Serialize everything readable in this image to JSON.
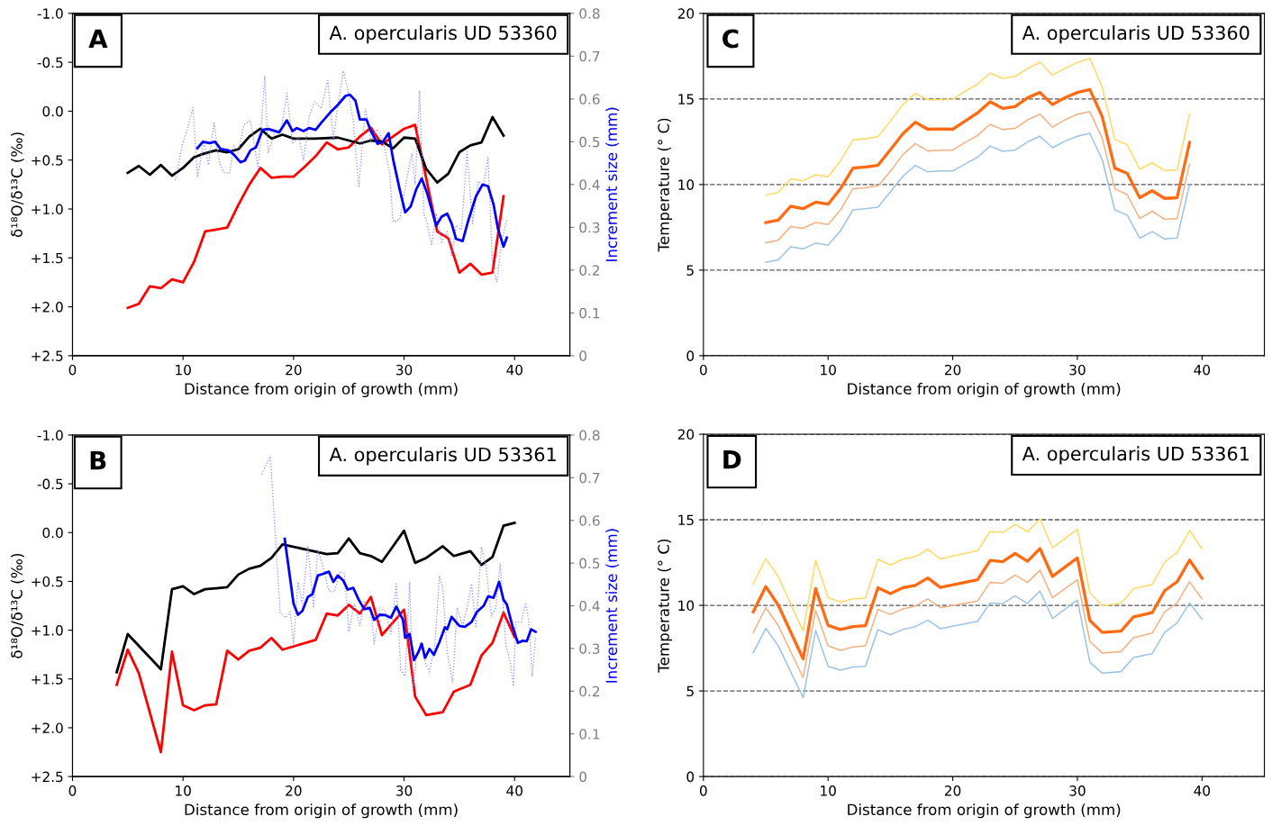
{
  "chart_data": [
    {
      "type": "line",
      "xlabel": "Distance from origin of growth (mm)",
      "ylabel": "δ¹⁸O/δ¹³C (‰)",
      "y2label": "Increment size (mm)",
      "xlim": [
        0,
        45
      ],
      "xticks": [
        0,
        10,
        20,
        30,
        40
      ],
      "ylim": [
        2.5,
        -1.0
      ],
      "yticks": [
        {
          "value": -1.0,
          "label": "-1.0"
        },
        {
          "value": -0.5,
          "label": "-0.5"
        },
        {
          "value": 0.0,
          "label": "0.0"
        },
        {
          "value": 0.5,
          "label": "+0.5"
        },
        {
          "value": 1.0,
          "label": "+1.0"
        },
        {
          "value": 1.5,
          "label": "+1.5"
        },
        {
          "value": 2.0,
          "label": "+2.0"
        },
        {
          "value": 2.5,
          "label": "+2.5"
        }
      ],
      "y2lim": [
        0,
        0.8
      ],
      "y2ticks": [
        0,
        0.1,
        0.2,
        0.3,
        0.4,
        0.5,
        0.6,
        0.7,
        0.8
      ],
      "annotations": [
        "A",
        "A. opercularis UD 53360"
      ],
      "series": [
        {
          "color": "#8c8cff",
          "axis": "y2",
          "line_style": "dotted",
          "x": [
            9.3,
            9.9,
            10.4,
            10.9,
            11.3,
            11.9,
            12.3,
            12.8,
            13.3,
            13.7,
            14.2,
            14.6,
            15.0,
            15.5,
            16.1,
            16.8,
            17.4,
            17.7,
            18.3,
            18.9,
            19.4,
            19.9,
            20.5,
            20.9,
            21.4,
            21.9,
            22.5,
            23.1,
            23.6,
            24.0,
            24.5,
            24.9,
            25.4,
            25.9,
            26.5,
            27.0,
            27.6,
            28.1,
            28.7,
            29.0,
            29.6,
            30.1,
            30.7,
            31.0,
            31.4,
            31.8,
            32.1,
            32.5,
            32.9,
            33.4,
            33.9,
            34.3,
            34.7,
            35.2,
            35.7,
            36.2,
            36.7,
            37.2,
            37.6,
            38.0,
            38.4,
            38.8,
            39.3
          ],
          "values": [
            0.41,
            0.49,
            0.53,
            0.58,
            0.417,
            0.5,
            0.445,
            0.544,
            0.45,
            0.428,
            0.426,
            0.49,
            0.473,
            0.54,
            0.55,
            0.436,
            0.654,
            0.473,
            0.52,
            0.53,
            0.613,
            0.497,
            0.511,
            0.456,
            0.558,
            0.594,
            0.577,
            0.643,
            0.504,
            0.582,
            0.666,
            0.624,
            0.549,
            0.395,
            0.577,
            0.502,
            0.53,
            0.502,
            0.426,
            0.313,
            0.318,
            0.393,
            0.473,
            0.4,
            0.619,
            0.332,
            0.309,
            0.257,
            0.332,
            0.266,
            0.29,
            0.233,
            0.304,
            0.295,
            0.477,
            0.309,
            0.407,
            0.398,
            0.464,
            0.21,
            0.172,
            0.266,
            0.318
          ]
        },
        {
          "color": "#0000ff",
          "axis": "y2",
          "x": [
            11.3,
            11.8,
            12.4,
            12.9,
            13.4,
            14.1,
            14.6,
            15.2,
            15.6,
            16.1,
            16.6,
            17.2,
            17.7,
            18.7,
            19.4,
            19.9,
            20.3,
            20.9,
            21.4,
            22.0,
            22.5,
            23.3,
            24.0,
            24.7,
            25.1,
            25.6,
            26.0,
            26.6,
            27.0,
            27.6,
            28.1,
            28.6,
            29.0,
            29.6,
            30.1,
            30.6,
            31.1,
            31.6,
            32.1,
            32.9,
            33.4,
            33.9,
            34.3,
            34.7,
            35.3,
            35.8,
            36.5,
            37.1,
            37.6,
            38.1,
            38.5,
            39.0,
            39.3
          ],
          "values": [
            0.485,
            0.5,
            0.497,
            0.5,
            0.483,
            0.48,
            0.47,
            0.452,
            0.456,
            0.48,
            0.487,
            0.528,
            0.53,
            0.522,
            0.55,
            0.525,
            0.532,
            0.525,
            0.532,
            0.528,
            0.544,
            0.568,
            0.586,
            0.607,
            0.61,
            0.596,
            0.552,
            0.552,
            0.525,
            0.495,
            0.5,
            0.52,
            0.46,
            0.389,
            0.335,
            0.349,
            0.389,
            0.414,
            0.379,
            0.304,
            0.325,
            0.332,
            0.309,
            0.273,
            0.268,
            0.315,
            0.372,
            0.4,
            0.396,
            0.353,
            0.296,
            0.255,
            0.276
          ]
        },
        {
          "color": "#ff0000",
          "x": [
            5,
            6,
            7,
            8,
            9,
            10,
            11,
            12,
            13,
            14,
            15,
            16,
            17,
            18,
            19,
            20,
            21,
            22,
            23,
            24,
            25,
            26,
            27,
            28,
            29,
            30,
            31,
            33,
            34,
            35,
            36,
            37,
            38,
            39
          ],
          "values": [
            2.01,
            1.97,
            1.79,
            1.81,
            1.72,
            1.75,
            1.54,
            1.23,
            1.21,
            1.19,
            0.96,
            0.75,
            0.58,
            0.68,
            0.67,
            0.67,
            0.57,
            0.46,
            0.32,
            0.39,
            0.37,
            0.26,
            0.17,
            0.34,
            0.26,
            0.18,
            0.14,
            1.23,
            1.3,
            1.65,
            1.56,
            1.67,
            1.65,
            0.87
          ]
        },
        {
          "color": "#000000",
          "x": [
            5,
            6,
            7,
            8,
            9,
            10,
            11,
            12,
            13,
            14,
            15,
            16,
            17,
            18,
            19,
            20,
            22,
            24,
            26,
            27,
            28,
            29,
            30,
            31,
            32,
            33,
            34,
            35,
            36,
            37,
            38,
            39
          ],
          "values": [
            0.63,
            0.56,
            0.65,
            0.55,
            0.66,
            0.58,
            0.47,
            0.43,
            0.4,
            0.42,
            0.39,
            0.26,
            0.18,
            0.28,
            0.24,
            0.28,
            0.28,
            0.27,
            0.33,
            0.3,
            0.31,
            0.38,
            0.27,
            0.28,
            0.59,
            0.73,
            0.64,
            0.42,
            0.35,
            0.32,
            0.06,
            0.25
          ]
        }
      ]
    },
    {
      "type": "line",
      "xlabel": "Distance from origin of growth (mm)",
      "ylabel": "Temperature (° C)",
      "xlim": [
        0,
        45
      ],
      "xticks": [
        0,
        10,
        20,
        30,
        40
      ],
      "ylim": [
        0,
        20
      ],
      "yticks": [
        0,
        5,
        10,
        15,
        20
      ],
      "grid": "y",
      "annotations": [
        "C",
        "A. opercularis UD 53360"
      ],
      "series": [
        {
          "color": "#ff6a13",
          "x": [
            5,
            6,
            7,
            8,
            9,
            10,
            11,
            12,
            13,
            14,
            15,
            16,
            17,
            18,
            19,
            20,
            21,
            22,
            23,
            24,
            25,
            26,
            27,
            28,
            29,
            30,
            31,
            32,
            33,
            34,
            35,
            36,
            37,
            38,
            39
          ],
          "values": [
            7.78,
            7.92,
            8.73,
            8.59,
            8.97,
            8.85,
            9.76,
            10.96,
            11.03,
            11.12,
            12.03,
            12.97,
            13.64,
            13.23,
            13.25,
            13.23,
            13.71,
            14.19,
            14.83,
            14.45,
            14.55,
            15.07,
            15.38,
            14.67,
            15.07,
            15.38,
            15.55,
            13.95,
            10.96,
            10.65,
            9.23,
            9.64,
            9.19,
            9.23,
            12.46
          ]
        },
        {
          "color": "#f4b183",
          "x": [
            5,
            6,
            7,
            8,
            9,
            10,
            11,
            12,
            13,
            14,
            15,
            16,
            17,
            18,
            19,
            20,
            21,
            22,
            23,
            24,
            25,
            26,
            27,
            28,
            29,
            30,
            31,
            32,
            33,
            34,
            35,
            36,
            37,
            38,
            39
          ],
          "values": [
            6.6,
            6.75,
            7.54,
            7.44,
            7.78,
            7.66,
            8.52,
            9.76,
            9.81,
            9.93,
            10.77,
            11.75,
            12.39,
            11.96,
            12.01,
            12.01,
            12.46,
            12.87,
            13.52,
            13.21,
            13.28,
            13.78,
            14.11,
            13.35,
            13.78,
            14.11,
            14.26,
            12.68,
            9.76,
            9.4,
            8.01,
            8.44,
            7.97,
            8.01,
            11.2
          ]
        },
        {
          "color": "#9dc3e6",
          "x": [
            5,
            6,
            7,
            8,
            9,
            10,
            11,
            12,
            13,
            14,
            15,
            16,
            17,
            18,
            19,
            20,
            21,
            22,
            23,
            24,
            25,
            26,
            27,
            28,
            29,
            30,
            31,
            32,
            33,
            34,
            35,
            36,
            37,
            38,
            39
          ],
          "values": [
            5.45,
            5.6,
            6.36,
            6.24,
            6.58,
            6.46,
            7.3,
            8.52,
            8.59,
            8.68,
            9.57,
            10.48,
            11.12,
            10.74,
            10.79,
            10.79,
            11.2,
            11.6,
            12.25,
            11.94,
            12.01,
            12.49,
            12.82,
            12.15,
            12.54,
            12.82,
            12.99,
            11.44,
            8.52,
            8.21,
            6.87,
            7.25,
            6.82,
            6.87,
            10.0
          ]
        },
        {
          "color": "#ffd966",
          "x": [
            5,
            6,
            7,
            8,
            9,
            10,
            11,
            12,
            13,
            14,
            15,
            16,
            17,
            18,
            19,
            20,
            21,
            22,
            23,
            24,
            25,
            26,
            27,
            28,
            29,
            30,
            31,
            32,
            33,
            34,
            35,
            36,
            37,
            38,
            39
          ],
          "values": [
            9.38,
            9.55,
            10.33,
            10.22,
            10.57,
            10.45,
            11.39,
            12.61,
            12.68,
            12.8,
            13.71,
            14.67,
            15.33,
            14.95,
            14.95,
            14.98,
            15.45,
            15.86,
            16.51,
            16.2,
            16.32,
            16.77,
            17.15,
            16.39,
            16.79,
            17.13,
            17.37,
            15.67,
            12.63,
            12.32,
            10.89,
            11.27,
            10.81,
            10.86,
            14.11
          ]
        }
      ]
    },
    {
      "type": "line",
      "xlabel": "Distance from origin of growth (mm)",
      "ylabel": "δ¹⁸O/δ¹³C (‰)",
      "y2label": "Increment size (mm)",
      "xlim": [
        0,
        45
      ],
      "xticks": [
        0,
        10,
        20,
        30,
        40
      ],
      "ylim": [
        2.5,
        -1.0
      ],
      "yticks": [
        {
          "value": -1.0,
          "label": "-1.0"
        },
        {
          "value": -0.5,
          "label": "-0.5"
        },
        {
          "value": 0.0,
          "label": "0.0"
        },
        {
          "value": 0.5,
          "label": "+0.5"
        },
        {
          "value": 1.0,
          "label": "+1.0"
        },
        {
          "value": 1.5,
          "label": "+1.5"
        },
        {
          "value": 2.0,
          "label": "+2.0"
        },
        {
          "value": 2.5,
          "label": "+2.5"
        }
      ],
      "y2lim": [
        0,
        0.8
      ],
      "y2ticks": [
        0,
        0.1,
        0.2,
        0.3,
        0.4,
        0.5,
        0.6,
        0.7,
        0.8
      ],
      "annotations": [
        "B",
        "A. opercularis UD 53361"
      ],
      "series": [
        {
          "color": "#8c8cff",
          "axis": "y2",
          "line_style": "dotted",
          "x": [
            17.1,
            17.9,
            18.8,
            19.3,
            19.7,
            20.0,
            20.4,
            20.8,
            21.3,
            21.8,
            22.2,
            22.7,
            23.2,
            23.7,
            24.2,
            24.6,
            25.0,
            25.5,
            26.0,
            26.4,
            27.0,
            27.3,
            27.8,
            28.3,
            28.8,
            29.3,
            29.7,
            30.1,
            30.5,
            30.8,
            31.1,
            31.5,
            31.9,
            32.3,
            32.8,
            33.2,
            33.5,
            33.9,
            34.4,
            34.8,
            35.3,
            35.7,
            36.1,
            36.5,
            37.0,
            37.4,
            37.9,
            38.3,
            38.7,
            39.2,
            39.6,
            39.9,
            40.1,
            40.6,
            41.0,
            41.3,
            41.6,
            41.9
          ],
          "values": [
            0.708,
            0.75,
            0.383,
            0.372,
            0.386,
            0.311,
            0.456,
            0.405,
            0.541,
            0.395,
            0.532,
            0.489,
            0.435,
            0.433,
            0.48,
            0.475,
            0.339,
            0.405,
            0.353,
            0.409,
            0.386,
            0.311,
            0.395,
            0.388,
            0.334,
            0.452,
            0.249,
            0.235,
            0.456,
            0.207,
            0.278,
            0.315,
            0.268,
            0.245,
            0.311,
            0.471,
            0.442,
            0.292,
            0.221,
            0.395,
            0.353,
            0.395,
            0.452,
            0.348,
            0.538,
            0.494,
            0.376,
            0.395,
            0.499,
            0.311,
            0.268,
            0.212,
            0.362,
            0.362,
            0.407,
            0.362,
            0.235,
            0.325
          ]
        },
        {
          "color": "#0000ff",
          "axis": "y2",
          "x": [
            19.2,
            20.0,
            20.4,
            20.8,
            21.3,
            21.7,
            22.2,
            22.7,
            23.2,
            23.6,
            24.0,
            24.5,
            24.9,
            25.4,
            25.9,
            26.4,
            26.9,
            27.3,
            27.8,
            28.3,
            28.8,
            29.3,
            29.9,
            30.1,
            30.5,
            30.9,
            31.3,
            31.6,
            31.9,
            32.3,
            32.7,
            33.2,
            33.7,
            33.9,
            34.3,
            35.0,
            35.5,
            36.1,
            36.6,
            37.2,
            37.6,
            38.1,
            38.6,
            39.0,
            39.3,
            39.8,
            40.3,
            40.7,
            41.1,
            41.5,
            41.9
          ],
          "values": [
            0.557,
            0.405,
            0.379,
            0.388,
            0.421,
            0.427,
            0.471,
            0.475,
            0.48,
            0.456,
            0.471,
            0.459,
            0.438,
            0.442,
            0.414,
            0.392,
            0.395,
            0.367,
            0.379,
            0.378,
            0.372,
            0.398,
            0.367,
            0.325,
            0.334,
            0.273,
            0.292,
            0.311,
            0.278,
            0.299,
            0.285,
            0.315,
            0.35,
            0.345,
            0.374,
            0.353,
            0.351,
            0.362,
            0.386,
            0.4,
            0.422,
            0.419,
            0.456,
            0.414,
            0.403,
            0.353,
            0.313,
            0.318,
            0.317,
            0.345,
            0.339
          ]
        },
        {
          "color": "#ff0000",
          "x": [
            4,
            5,
            6,
            8,
            9,
            10,
            11,
            12,
            13,
            14,
            15,
            16,
            17,
            18,
            19,
            22,
            23,
            24,
            25,
            26,
            27,
            28,
            30,
            31,
            32,
            33.5,
            34.5,
            36,
            37,
            38,
            39,
            40
          ],
          "values": [
            1.56,
            1.2,
            1.44,
            2.25,
            1.22,
            1.77,
            1.82,
            1.77,
            1.76,
            1.21,
            1.3,
            1.21,
            1.18,
            1.08,
            1.2,
            1.1,
            0.83,
            0.85,
            0.74,
            0.83,
            0.66,
            1.05,
            0.79,
            1.68,
            1.87,
            1.84,
            1.63,
            1.56,
            1.26,
            1.13,
            0.82,
            1.07
          ]
        },
        {
          "color": "#000000",
          "x": [
            4,
            5,
            6,
            8,
            9,
            10,
            11,
            12,
            13,
            14,
            15,
            16,
            17,
            18,
            19,
            23,
            24,
            25,
            26,
            27,
            28,
            29,
            30,
            31,
            32,
            33.5,
            34.5,
            36,
            37,
            38,
            39,
            40
          ],
          "values": [
            1.43,
            1.04,
            1.16,
            1.4,
            0.58,
            0.55,
            0.63,
            0.58,
            0.57,
            0.56,
            0.43,
            0.37,
            0.34,
            0.26,
            0.12,
            0.22,
            0.21,
            0.06,
            0.21,
            0.24,
            0.3,
            0.14,
            -0.02,
            0.31,
            0.26,
            0.14,
            0.24,
            0.19,
            0.33,
            0.25,
            -0.07,
            -0.1
          ]
        }
      ]
    },
    {
      "type": "line",
      "xlabel": "Distance from origin of growth (mm)",
      "ylabel": "Temperature (° C)",
      "xlim": [
        0,
        45
      ],
      "xticks": [
        0,
        10,
        20,
        30,
        40
      ],
      "ylim": [
        0,
        20
      ],
      "yticks": [
        0,
        5,
        10,
        15,
        20
      ],
      "grid": "y",
      "annotations": [
        "D",
        "A. opercularis UD 53361"
      ],
      "series": [
        {
          "color": "#ff6a13",
          "x": [
            4,
            5,
            6,
            8,
            9,
            10,
            11,
            12,
            13,
            14,
            15,
            16,
            17,
            18,
            19,
            22,
            23,
            24,
            25,
            26,
            27,
            28,
            30,
            31,
            32,
            33.5,
            34.5,
            36,
            37,
            38,
            39,
            40
          ],
          "values": [
            9.62,
            11.1,
            10.02,
            6.87,
            10.98,
            8.83,
            8.59,
            8.76,
            8.81,
            11.03,
            10.69,
            11.03,
            11.17,
            11.6,
            11.05,
            11.5,
            12.63,
            12.55,
            13.03,
            12.58,
            13.32,
            11.69,
            12.77,
            9.12,
            8.42,
            8.5,
            9.33,
            9.57,
            10.86,
            11.38,
            12.65,
            11.58
          ]
        },
        {
          "color": "#f4b183",
          "x": [
            4,
            5,
            6,
            8,
            9,
            10,
            11,
            12,
            13,
            14,
            15,
            16,
            17,
            18,
            19,
            22,
            23,
            24,
            25,
            26,
            27,
            28,
            30,
            31,
            32,
            33.5,
            34.5,
            36,
            37,
            38,
            39,
            40
          ],
          "values": [
            8.42,
            9.86,
            8.83,
            5.78,
            9.71,
            7.64,
            7.37,
            7.57,
            7.64,
            9.76,
            9.47,
            9.79,
            9.95,
            10.38,
            9.86,
            10.26,
            11.34,
            11.29,
            11.77,
            11.34,
            12.05,
            10.45,
            11.5,
            7.9,
            7.21,
            7.3,
            8.11,
            8.38,
            9.62,
            10.14,
            11.38,
            10.38
          ]
        },
        {
          "color": "#9dc3e6",
          "x": [
            4,
            5,
            6,
            8,
            9,
            10,
            11,
            12,
            13,
            14,
            15,
            16,
            17,
            18,
            19,
            22,
            23,
            24,
            25,
            26,
            27,
            28,
            30,
            31,
            32,
            33.5,
            34.5,
            36,
            37,
            38,
            39,
            40
          ],
          "values": [
            7.23,
            8.66,
            7.64,
            4.61,
            8.54,
            6.44,
            6.21,
            6.4,
            6.44,
            8.59,
            8.28,
            8.59,
            8.76,
            9.14,
            8.64,
            9.07,
            10.14,
            10.1,
            10.55,
            10.12,
            10.84,
            9.24,
            10.31,
            6.68,
            6.04,
            6.13,
            6.95,
            7.18,
            8.42,
            8.97,
            10.14,
            9.19
          ]
        },
        {
          "color": "#ffd966",
          "x": [
            4,
            5,
            6,
            8,
            9,
            10,
            11,
            12,
            13,
            14,
            15,
            16,
            17,
            18,
            19,
            22,
            23,
            24,
            25,
            26,
            27,
            28,
            30,
            31,
            32,
            33.5,
            34.5,
            36,
            37,
            38,
            39,
            40
          ],
          "values": [
            11.26,
            12.74,
            11.69,
            8.5,
            12.63,
            10.45,
            10.19,
            10.38,
            10.43,
            12.7,
            12.36,
            12.7,
            12.84,
            13.27,
            12.72,
            13.2,
            14.32,
            14.25,
            14.73,
            14.3,
            15.04,
            13.37,
            14.44,
            10.74,
            9.98,
            10.12,
            10.98,
            11.22,
            12.53,
            13.08,
            14.37,
            13.29
          ]
        }
      ]
    }
  ]
}
